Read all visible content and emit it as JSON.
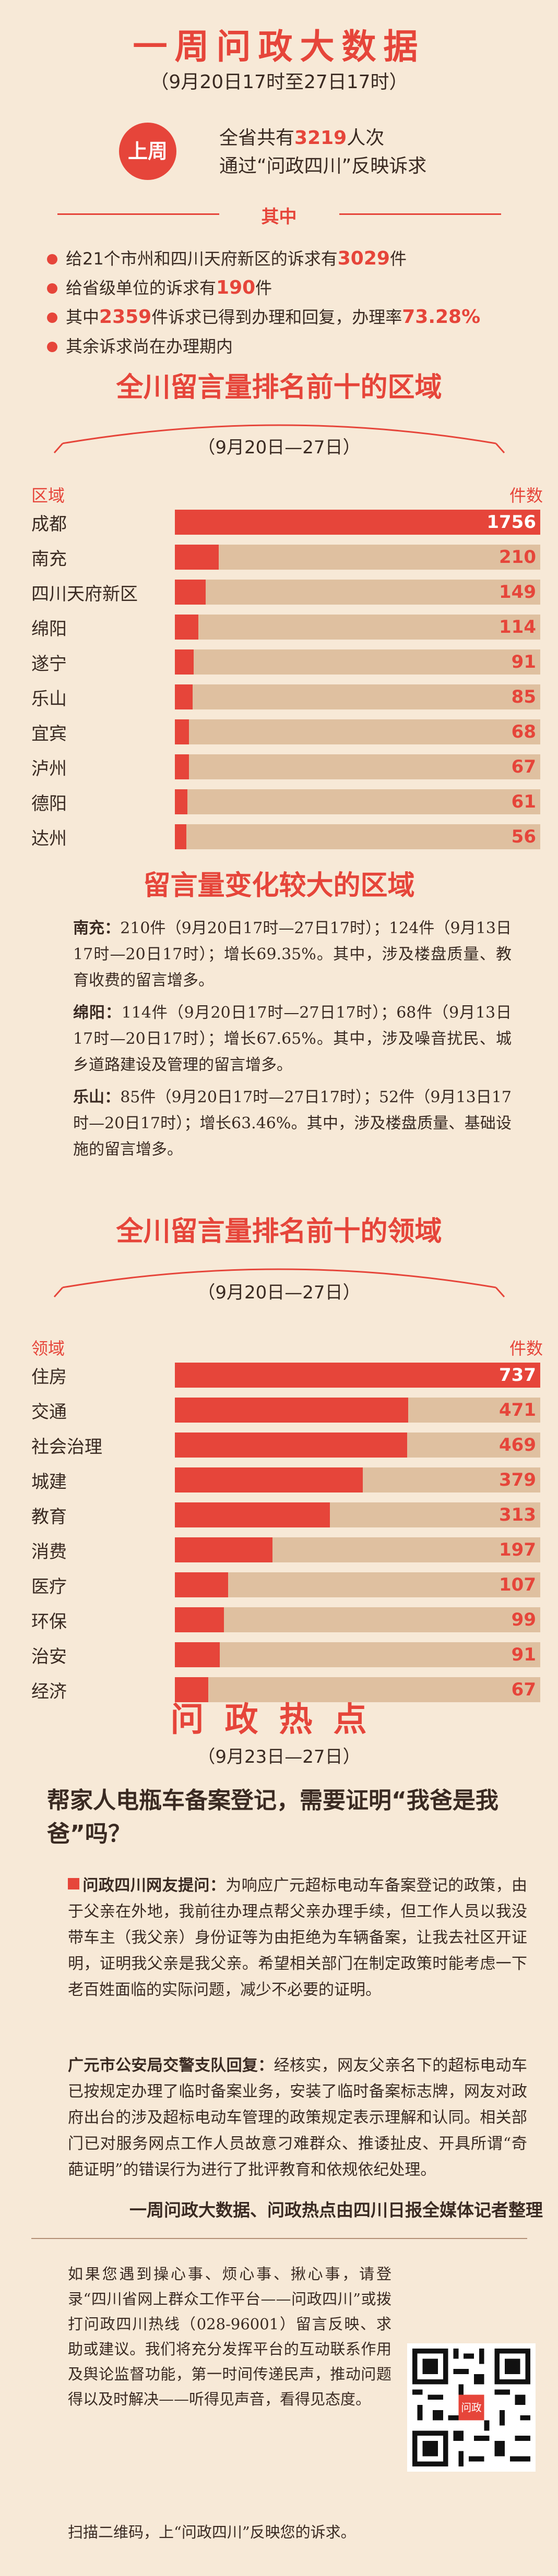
{
  "header": {
    "title": "一周问政大数据",
    "period": "（9月20日17时至27日17时）",
    "badge": "上周",
    "summary_line1_pre": "全省共有",
    "summary_count": "3219",
    "summary_line1_post": "人次",
    "summary_line2": "通过“问政四川”反映诉求"
  },
  "breakdown": {
    "label": "其中",
    "items": [
      {
        "pre": "给21个市州和四川天府新区的诉求有",
        "num": "3029",
        "post": "件"
      },
      {
        "pre": "给省级单位的诉求有",
        "num": "190",
        "post": "件"
      },
      {
        "pre": "其中",
        "num": "2359",
        "post": "件诉求已得到办理和回复，办理率",
        "num2": "73.28%"
      },
      {
        "pre": "其余诉求尚在办理期内",
        "num": "",
        "post": ""
      }
    ]
  },
  "chart_data": [
    {
      "type": "bar",
      "title": "全川留言量排名前十的区域",
      "subtitle": "（9月20日—27日）",
      "xlabel": "区域",
      "ylabel": "件数",
      "categories": [
        "成都",
        "南充",
        "四川天府新区",
        "绵阳",
        "遂宁",
        "乐山",
        "宜宾",
        "泸州",
        "德阳",
        "达州"
      ],
      "values": [
        1756,
        210,
        149,
        114,
        91,
        85,
        68,
        67,
        61,
        56
      ]
    },
    {
      "type": "bar",
      "title": "全川留言量排名前十的领域",
      "subtitle": "（9月20日—27日）",
      "xlabel": "领域",
      "ylabel": "件数",
      "categories": [
        "住房",
        "交通",
        "社会治理",
        "城建",
        "教育",
        "消费",
        "医疗",
        "环保",
        "治安",
        "经济"
      ],
      "values": [
        737,
        471,
        469,
        379,
        313,
        197,
        107,
        99,
        91,
        67
      ]
    }
  ],
  "change": {
    "title": "留言量变化较大的区域",
    "items": [
      {
        "name": "南充：",
        "text": "210件（9月20日17时—27日17时）；124件（9月13日17时—20日17时）；增长69.35%。其中，涉及楼盘质量、教育收费的留言增多。"
      },
      {
        "name": "绵阳：",
        "text": "114件（9月20日17时—27日17时）；68件（9月13日17时—20日17时）；增长67.65%。其中，涉及噪音扰民、城乡道路建设及管理的留言增多。"
      },
      {
        "name": "乐山：",
        "text": "85件（9月20日17时—27日17时）；52件（9月13日17时—20日17时）；增长63.46%。其中，涉及楼盘质量、基础设施的留言增多。"
      }
    ]
  },
  "hot": {
    "title": "问政热点",
    "period": "（9月23日—27日）",
    "question": "帮家人电瓶车备案登记，需要证明“我爸是我爸”吗？",
    "q_label": "问政四川网友提问：",
    "q_text": "为响应广元超标电动车备案登记的政策，由于父亲在外地，我前往办理点帮父亲办理手续，但工作人员以我没带车主（我父亲）身份证等为由拒绝为车辆备案，让我去社区开证明，证明我父亲是我父亲。希望相关部门在制定政策时能考虑一下老百姓面临的实际问题，减少不必要的证明。",
    "a_label": "广元市公安局交警支队回复：",
    "a_text": "经核实，网友父亲名下的超标电动车已按规定办理了临时备案业务，安装了临时备案标志牌，网友对政府出台的涉及超标电动车管理的政策规定表示理解和认同。相关部门已对服务网点工作人员故意刁难群众、推诿扯皮、开具所谓“奇葩证明”的错误行为进行了批评教育和依规依纪处理。",
    "credit": "一周问政大数据、问政热点由四川日报全媒体记者整理"
  },
  "footer": {
    "text": "如果您遇到操心事、烦心事、揪心事，请登录“四川省网上群众工作平台——问政四川”或拨打问政四川热线（028-96001）留言反映、求助或建议。我们将充分发挥平台的互动联系作用及舆论监督功能，第一时间传递民声，推动问题得以及时解决——听得见声音，看得见态度。",
    "scan": "扫描二维码，上“问政四川”反映您的诉求。",
    "qr_badge": "问政",
    "colors": {
      "accent": "#e6453a",
      "track": "#dfc0a0",
      "background": "#f7e9d7"
    }
  }
}
